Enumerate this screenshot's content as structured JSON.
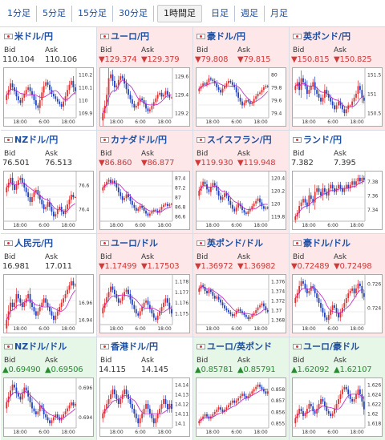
{
  "tabs": [
    {
      "label": "1分足",
      "active": false
    },
    {
      "label": "5分足",
      "active": false
    },
    {
      "label": "15分足",
      "active": false
    },
    {
      "label": "30分足",
      "active": false
    },
    {
      "label": "1時間足",
      "active": true
    },
    {
      "label": "日足",
      "active": false
    },
    {
      "label": "週足",
      "active": false
    },
    {
      "label": "月足",
      "active": false
    }
  ],
  "bid_label": "Bid",
  "ask_label": "Ask",
  "x_ticks": [
    "18:00",
    "6:00",
    "18:00"
  ],
  "colors": {
    "down_bg": "#fde7e9",
    "up_bg": "#e6f6e7",
    "down_text": "#d13a3a",
    "up_text": "#2a8a34",
    "pair_text": "#1f4fa0",
    "ma_line": "#c020c0",
    "candle_up": "#e03030",
    "candle_down": "#2040c0"
  },
  "pairs": [
    {
      "name": "米ドル/円",
      "trend": "flat",
      "bid": "110.104",
      "ask": "110.106",
      "y_ticks": [
        "110.2",
        "110.1",
        "110",
        "109.9"
      ],
      "closes": [
        110.04,
        110.08,
        110.13,
        110.1,
        110.07,
        110.03,
        110.0,
        109.98,
        110.02,
        110.05,
        110.08,
        110.1,
        110.07,
        110.04,
        110.0,
        109.96,
        109.94,
        110.0,
        110.06,
        110.11,
        110.14,
        110.12,
        110.08,
        110.05,
        110.03,
        110.01,
        109.99,
        109.97,
        109.95,
        109.99,
        110.03,
        110.08,
        110.12,
        110.15,
        110.1,
        110.07
      ]
    },
    {
      "name": "ユーロ/円",
      "trend": "down",
      "bid": "▼129.374",
      "ask": "▼129.379",
      "y_ticks": [
        "129.6",
        "129.4",
        "129.2"
      ],
      "closes": [
        129.2,
        129.28,
        129.4,
        129.58,
        129.62,
        129.55,
        129.48,
        129.5,
        129.56,
        129.6,
        129.58,
        129.52,
        129.46,
        129.4,
        129.35,
        129.3,
        129.26,
        129.28,
        129.32,
        129.36,
        129.34,
        129.3,
        129.25,
        129.22,
        129.24,
        129.28,
        129.32,
        129.36,
        129.4,
        129.42,
        129.38,
        129.4,
        129.44,
        129.4,
        129.37,
        129.37
      ]
    },
    {
      "name": "豪ドル/円",
      "trend": "down",
      "bid": "▼79.808",
      "ask": "▼79.815",
      "y_ticks": [
        "80",
        "79.8",
        "79.6",
        "79.4"
      ],
      "closes": [
        79.78,
        79.82,
        79.86,
        79.84,
        79.88,
        79.94,
        79.92,
        79.9,
        79.86,
        79.8,
        79.76,
        79.72,
        79.78,
        79.82,
        79.86,
        79.9,
        79.88,
        79.84,
        79.8,
        79.72,
        79.64,
        79.58,
        79.52,
        79.56,
        79.6,
        79.58,
        79.54,
        79.56,
        79.62,
        79.66,
        79.7,
        79.72,
        79.76,
        79.8,
        79.82,
        79.81
      ]
    },
    {
      "name": "英ポンド/円",
      "trend": "down",
      "bid": "▼150.815",
      "ask": "▼150.825",
      "y_ticks": [
        "151.5",
        "151",
        "150.5"
      ],
      "closes": [
        151.2,
        151.3,
        151.1,
        151.4,
        151.3,
        151.2,
        151.0,
        151.1,
        151.2,
        151.3,
        151.1,
        151.0,
        150.9,
        150.8,
        150.9,
        151.1,
        151.0,
        150.9,
        150.8,
        150.7,
        150.6,
        150.7,
        150.8,
        150.7,
        150.6,
        150.5,
        150.6,
        150.7,
        150.7,
        150.8,
        150.9,
        151.0,
        151.2,
        151.1,
        150.9,
        150.82
      ]
    },
    {
      "name": "NZドル/円",
      "trend": "flat",
      "bid": "76.501",
      "ask": "76.513",
      "y_ticks": [
        "76.6",
        "76.4"
      ],
      "closes": [
        76.58,
        76.62,
        76.66,
        76.6,
        76.56,
        76.6,
        76.64,
        76.66,
        76.62,
        76.58,
        76.54,
        76.5,
        76.46,
        76.5,
        76.54,
        76.56,
        76.52,
        76.48,
        76.44,
        76.4,
        76.42,
        76.46,
        76.42,
        76.38,
        76.34,
        76.36,
        76.4,
        76.42,
        76.38,
        76.36,
        76.4,
        76.44,
        76.48,
        76.52,
        76.5,
        76.5
      ]
    },
    {
      "name": "カナダドル/円",
      "trend": "down",
      "bid": "▼86.860",
      "ask": "▼86.877",
      "y_ticks": [
        "87.4",
        "87.2",
        "87",
        "86.8",
        "86.6"
      ],
      "closes": [
        87.2,
        87.26,
        87.32,
        87.36,
        87.3,
        87.34,
        87.28,
        87.2,
        87.1,
        87.02,
        86.94,
        86.98,
        87.06,
        87.0,
        86.92,
        86.84,
        86.78,
        86.72,
        86.76,
        86.82,
        86.78,
        86.72,
        86.66,
        86.62,
        86.66,
        86.7,
        86.74,
        86.72,
        86.68,
        86.74,
        86.8,
        86.84,
        86.86,
        86.82,
        86.85,
        86.86
      ]
    },
    {
      "name": "スイスフラン/円",
      "trend": "down",
      "bid": "▼119.930",
      "ask": "▼119.948",
      "y_ticks": [
        "120.4",
        "120.2",
        "120",
        "119.8"
      ],
      "closes": [
        120.2,
        120.28,
        120.34,
        120.3,
        120.22,
        120.18,
        120.26,
        120.32,
        120.28,
        120.2,
        120.12,
        120.06,
        120.1,
        120.16,
        120.12,
        120.04,
        119.98,
        119.92,
        119.88,
        119.94,
        120.0,
        119.96,
        119.9,
        119.86,
        119.84,
        119.88,
        119.92,
        119.96,
        120.0,
        120.04,
        120.08,
        120.02,
        119.96,
        119.92,
        119.94,
        119.93
      ]
    },
    {
      "name": "ランド/円",
      "trend": "flat",
      "bid": "7.382",
      "ask": "7.395",
      "y_ticks": [
        "7.38",
        "7.36",
        "7.34"
      ],
      "closes": [
        7.33,
        7.335,
        7.345,
        7.35,
        7.355,
        7.35,
        7.345,
        7.36,
        7.355,
        7.35,
        7.365,
        7.37,
        7.365,
        7.36,
        7.37,
        7.365,
        7.36,
        7.37,
        7.375,
        7.37,
        7.365,
        7.37,
        7.375,
        7.37,
        7.365,
        7.37,
        7.375,
        7.37,
        7.375,
        7.38,
        7.375,
        7.38,
        7.385,
        7.38,
        7.385,
        7.382
      ]
    },
    {
      "name": "人民元/円",
      "trend": "flat",
      "bid": "16.981",
      "ask": "17.011",
      "y_ticks": [
        "16.96",
        "16.94"
      ],
      "closes": [
        16.94,
        16.95,
        16.96,
        16.955,
        16.96,
        16.97,
        16.965,
        16.96,
        16.955,
        16.96,
        16.965,
        16.97,
        16.96,
        16.955,
        16.95,
        16.945,
        16.95,
        16.955,
        16.96,
        16.965,
        16.96,
        16.955,
        16.95,
        16.945,
        16.94,
        16.945,
        16.95,
        16.955,
        16.96,
        16.965,
        16.97,
        16.975,
        16.98,
        16.985,
        16.98,
        16.981
      ]
    },
    {
      "name": "ユーロ/ドル",
      "trend": "down",
      "bid": "▼1.17499",
      "ask": "▼1.17503",
      "y_ticks": [
        "1.178",
        "1.177",
        "1.176",
        "1.175"
      ],
      "closes": [
        1.1755,
        1.176,
        1.1765,
        1.177,
        1.1775,
        1.1772,
        1.1768,
        1.1764,
        1.176,
        1.1762,
        1.1766,
        1.177,
        1.1772,
        1.1768,
        1.1763,
        1.1758,
        1.1754,
        1.175,
        1.1748,
        1.1752,
        1.1756,
        1.176,
        1.1762,
        1.1758,
        1.1754,
        1.175,
        1.1746,
        1.1744,
        1.1748,
        1.1752,
        1.1756,
        1.176,
        1.1764,
        1.176,
        1.1754,
        1.175
      ]
    },
    {
      "name": "英ポンド/ドル",
      "trend": "down",
      "bid": "▼1.36972",
      "ask": "▼1.36982",
      "y_ticks": [
        "1.376",
        "1.374",
        "1.372",
        "1.37",
        "1.368"
      ],
      "closes": [
        1.3745,
        1.3752,
        1.3748,
        1.374,
        1.3735,
        1.3742,
        1.3738,
        1.373,
        1.3724,
        1.3728,
        1.3722,
        1.3716,
        1.371,
        1.3704,
        1.37,
        1.3696,
        1.3692,
        1.3688,
        1.3692,
        1.3698,
        1.3702,
        1.3698,
        1.3694,
        1.369,
        1.3686,
        1.3682,
        1.3686,
        1.369,
        1.3694,
        1.37,
        1.3706,
        1.371,
        1.3714,
        1.3708,
        1.37,
        1.3697
      ]
    },
    {
      "name": "豪ドル/ドル",
      "trend": "down",
      "bid": "▼0.72489",
      "ask": "▼0.72498",
      "y_ticks": [
        "0.726",
        "0.724"
      ],
      "closes": [
        0.7248,
        0.7252,
        0.7258,
        0.7262,
        0.726,
        0.7256,
        0.7252,
        0.7254,
        0.7258,
        0.7256,
        0.7252,
        0.7248,
        0.7244,
        0.724,
        0.7236,
        0.7232,
        0.723,
        0.7234,
        0.7238,
        0.7242,
        0.724,
        0.7236,
        0.7232,
        0.7236,
        0.724,
        0.7244,
        0.7248,
        0.7252,
        0.7254,
        0.7256,
        0.7252,
        0.7256,
        0.726,
        0.7258,
        0.7252,
        0.7249
      ]
    },
    {
      "name": "NZドル/ドル",
      "trend": "up",
      "bid": "▲0.69490",
      "ask": "▲0.69506",
      "y_ticks": [
        "0.696",
        "0.694"
      ],
      "closes": [
        0.695,
        0.6954,
        0.6958,
        0.6962,
        0.696,
        0.6956,
        0.6954,
        0.6952,
        0.6956,
        0.696,
        0.6958,
        0.6954,
        0.695,
        0.6946,
        0.6944,
        0.6942,
        0.6944,
        0.6948,
        0.6946,
        0.6942,
        0.694,
        0.6938,
        0.6936,
        0.6938,
        0.694,
        0.6942,
        0.694,
        0.6938,
        0.694,
        0.6942,
        0.6944,
        0.6946,
        0.6948,
        0.695,
        0.6948,
        0.6949
      ]
    },
    {
      "name": "香港ドル/円",
      "trend": "flat",
      "bid": "14.115",
      "ask": "14.145",
      "y_ticks": [
        "14.14",
        "14.13",
        "14.12",
        "14.11",
        "14.1"
      ],
      "closes": [
        14.11,
        14.115,
        14.12,
        14.125,
        14.13,
        14.135,
        14.13,
        14.125,
        14.12,
        14.125,
        14.13,
        14.135,
        14.13,
        14.125,
        14.12,
        14.115,
        14.11,
        14.105,
        14.1,
        14.105,
        14.11,
        14.115,
        14.12,
        14.115,
        14.11,
        14.105,
        14.1,
        14.105,
        14.11,
        14.115,
        14.12,
        14.125,
        14.12,
        14.115,
        14.12,
        14.115
      ]
    },
    {
      "name": "ユーロ/英ポンド",
      "trend": "up",
      "bid": "▲0.85781",
      "ask": "▲0.85791",
      "y_ticks": [
        "0.858",
        "0.857",
        "0.856",
        "0.855"
      ],
      "closes": [
        0.8552,
        0.8554,
        0.8556,
        0.8558,
        0.8556,
        0.8554,
        0.8556,
        0.8558,
        0.856,
        0.8562,
        0.8564,
        0.8562,
        0.856,
        0.8562,
        0.8564,
        0.8566,
        0.8568,
        0.857,
        0.8568,
        0.857,
        0.8572,
        0.8574,
        0.8576,
        0.8574,
        0.8572,
        0.8574,
        0.8576,
        0.8578,
        0.858,
        0.8582,
        0.8584,
        0.8582,
        0.858,
        0.8578,
        0.8576,
        0.8578
      ]
    },
    {
      "name": "ユーロ/豪ドル",
      "trend": "up",
      "bid": "▲1.62092",
      "ask": "▲1.62107",
      "y_ticks": [
        "1.626",
        "1.624",
        "1.622",
        "1.62",
        "1.618"
      ],
      "closes": [
        1.619,
        1.62,
        1.621,
        1.6205,
        1.6195,
        1.62,
        1.621,
        1.622,
        1.6215,
        1.6205,
        1.62,
        1.621,
        1.622,
        1.623,
        1.6225,
        1.6215,
        1.6205,
        1.62,
        1.6195,
        1.62,
        1.621,
        1.622,
        1.623,
        1.624,
        1.625,
        1.6255,
        1.625,
        1.624,
        1.623,
        1.6225,
        1.623,
        1.624,
        1.625,
        1.624,
        1.6225,
        1.6209
      ]
    }
  ]
}
